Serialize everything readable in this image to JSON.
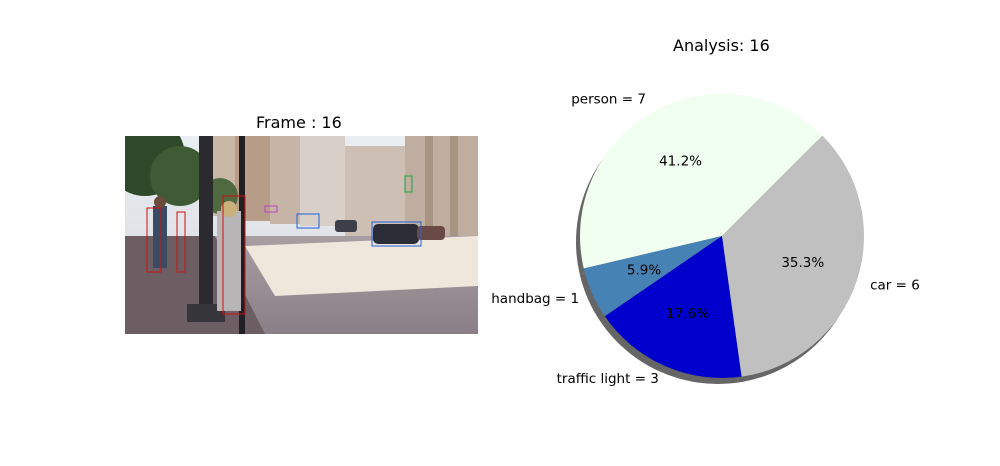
{
  "frame_panel": {
    "title": "Frame : 16"
  },
  "chart_data": {
    "type": "pie",
    "title": "Analysis: 16",
    "slices": [
      {
        "label": "person = 7",
        "value": 7,
        "percent_label": "41.2%",
        "color": "#F0FFF0"
      },
      {
        "label": "handbag = 1",
        "value": 1,
        "percent_label": "5.9%",
        "color": "#4682B4"
      },
      {
        "label": "traffic light = 3",
        "value": 3,
        "percent_label": "17.6%",
        "color": "#0000CD"
      },
      {
        "label": "car = 6",
        "value": 6,
        "percent_label": "35.3%",
        "color": "#C0C0C0"
      }
    ],
    "shadow": true,
    "start_angle_deg": 45,
    "direction": "counterclockwise"
  }
}
